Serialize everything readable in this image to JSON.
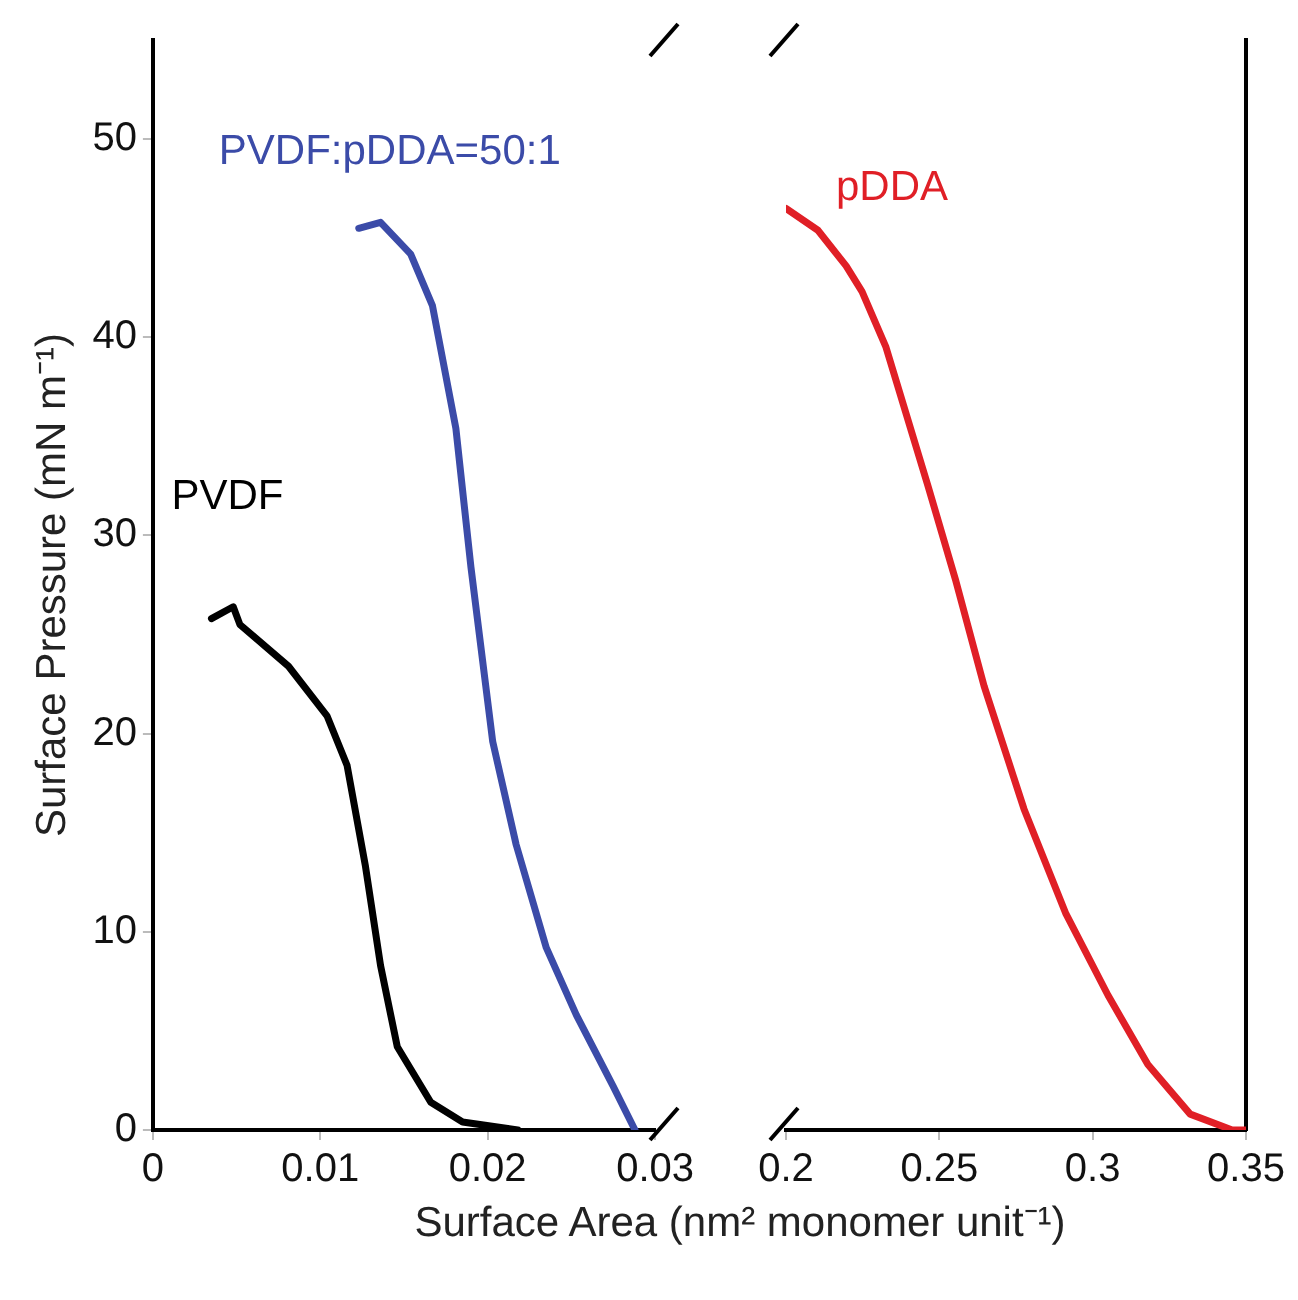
{
  "chart_data": [
    {
      "type": "line",
      "ylabel": "Surface Pressure (mN m⁻¹)",
      "xlabel": "Surface Area (nm² monomer unit⁻¹)",
      "xlim": [
        0,
        0.03
      ],
      "xticks": [
        0,
        0.01,
        0.02,
        0.03
      ],
      "ylim": [
        0,
        55
      ],
      "yticks": [
        0,
        10,
        20,
        30,
        40,
        50
      ],
      "grid": false,
      "legend": false,
      "marker": "none",
      "line_style": "solid",
      "series": [
        {
          "name": "PVDF",
          "color": "#000000",
          "x": [
            0.0035,
            0.0048,
            0.0052,
            0.0081,
            0.0104,
            0.0116,
            0.0127,
            0.0136,
            0.0146,
            0.0166,
            0.0185,
            0.0218
          ],
          "values": [
            25.8,
            26.4,
            25.5,
            23.4,
            20.9,
            18.4,
            13.3,
            8.3,
            4.2,
            1.4,
            0.4,
            0
          ]
        },
        {
          "name": "PVDF:pDDA=50:1",
          "color": "#3b4ba8",
          "x": [
            0.0123,
            0.0136,
            0.0154,
            0.0167,
            0.0181,
            0.019,
            0.0203,
            0.0217,
            0.0235,
            0.0253,
            0.0275,
            0.0288
          ],
          "values": [
            45.5,
            45.8,
            44.2,
            41.6,
            35.4,
            28.4,
            19.6,
            14.4,
            9.2,
            5.8,
            2.2,
            0
          ]
        }
      ]
    },
    {
      "type": "line",
      "xlim": [
        0.2,
        0.35
      ],
      "xticks": [
        0.2,
        0.25,
        0.3,
        0.35
      ],
      "ylim": [
        0,
        55
      ],
      "tick_labels": "x",
      "grid": false,
      "legend": false,
      "marker": "none",
      "line_style": "solid",
      "series": [
        {
          "name": "pDDA",
          "color": "#e01f26",
          "x": [
            0.2,
            0.2104,
            0.2196,
            0.2248,
            0.2326,
            0.2463,
            0.2554,
            0.2646,
            0.2776,
            0.2913,
            0.305,
            0.318,
            0.3318,
            0.3455,
            0.35
          ],
          "values": [
            46.5,
            45.4,
            43.6,
            42.3,
            39.5,
            32.5,
            27.7,
            22.4,
            16.2,
            10.9,
            6.8,
            3.3,
            0.8,
            0,
            0
          ]
        }
      ]
    }
  ]
}
